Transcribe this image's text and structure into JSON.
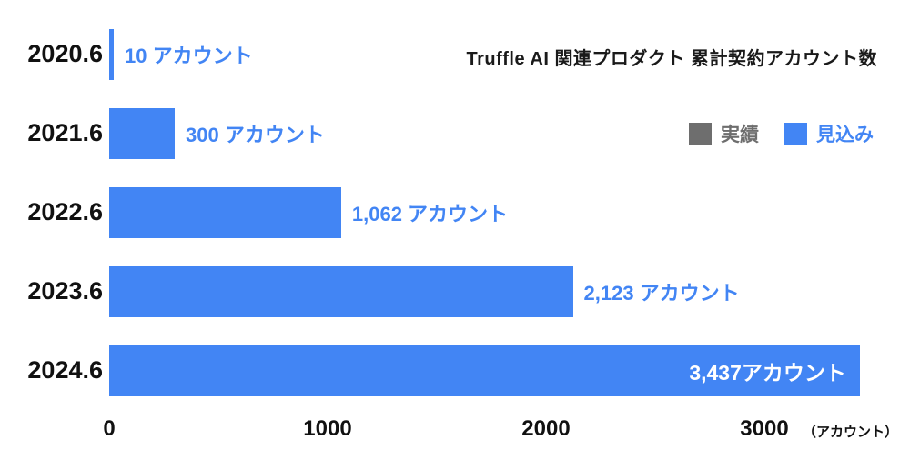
{
  "chart": {
    "title": "Truffle AI 関連プロダクト 累計契約アカウント数"
  },
  "chart_data": {
    "type": "bar",
    "orientation": "horizontal",
    "title": "Truffle AI 関連プロダクト 累計契約アカウント数",
    "categories": [
      "2020.6",
      "2021.6",
      "2022.6",
      "2023.6",
      "2024.6"
    ],
    "values": [
      10,
      300,
      1062,
      2123,
      3437
    ],
    "value_labels": [
      "10 アカウント",
      "300 アカウント",
      "1,062 アカウント",
      "2,123 アカウント",
      "3,437アカウント"
    ],
    "x_ticks": [
      0,
      1000,
      2000,
      3000
    ],
    "x_tick_labels": [
      "0",
      "1000",
      "2000",
      "3000"
    ],
    "xlabel": "（アカウント）",
    "xlim": [
      0,
      3500
    ],
    "grid": false,
    "bar_color": "#4285f4",
    "legend_position": "upper right",
    "legend": [
      {
        "label": "実績",
        "color": "#6e6e6e"
      },
      {
        "label": "見込み",
        "color": "#4285f4"
      }
    ]
  }
}
